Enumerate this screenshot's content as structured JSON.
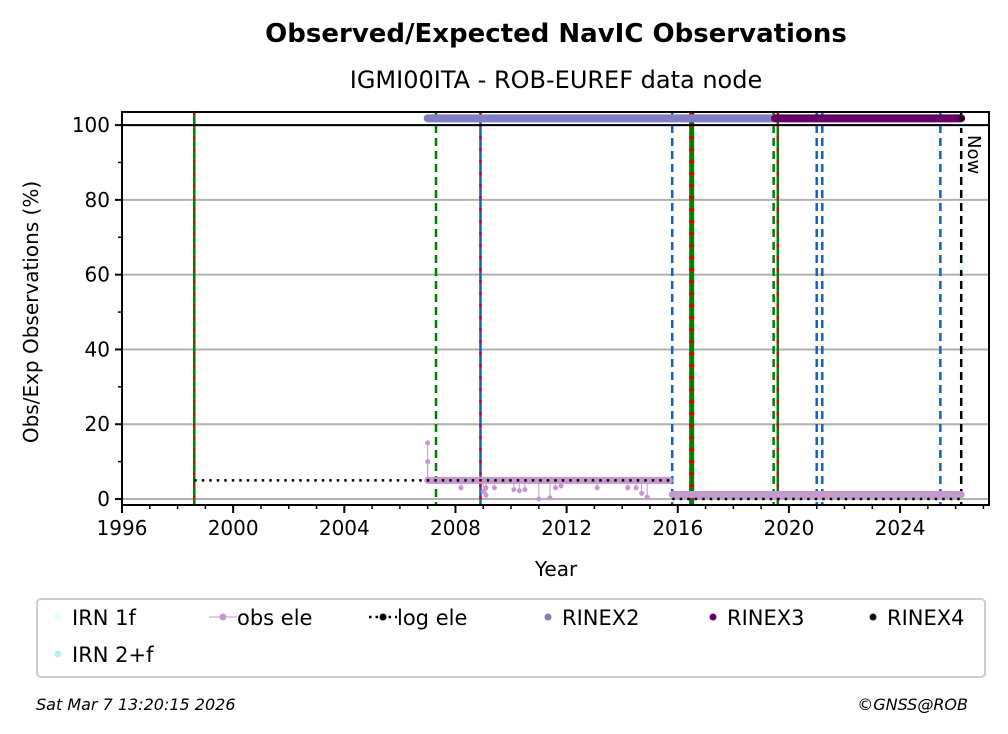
{
  "chart_data": {
    "type": "scatter",
    "title": "Observed/Expected NavIC Observations",
    "subtitle": "IGMI00ITA - ROB-EUREF data node",
    "xlabel": "Year",
    "ylabel": "Obs/Exp Observations (%)",
    "xlim": [
      1996,
      2027.2
    ],
    "ylim": [
      -1.6,
      103.5
    ],
    "xticks": [
      1996,
      2000,
      2004,
      2008,
      2012,
      2016,
      2020,
      2024
    ],
    "yticks": [
      0,
      20,
      40,
      60,
      80,
      100
    ],
    "grid": "y",
    "now_label": "Now",
    "vlines": [
      {
        "x": 1998.6,
        "colors": [
          "#008000",
          "#dd0000"
        ],
        "style": "solid"
      },
      {
        "x": 2007.3,
        "colors": [
          "#008000"
        ],
        "style": "dashed"
      },
      {
        "x": 2008.9,
        "colors": [
          "#1560bd",
          "#dd0000"
        ],
        "style": "solid"
      },
      {
        "x": 2015.8,
        "colors": [
          "#1560bd"
        ],
        "style": "dashed"
      },
      {
        "x": 2016.5,
        "colors": [
          "#008000",
          "#dd0000"
        ],
        "style": "thick"
      },
      {
        "x": 2019.45,
        "colors": [
          "#008000"
        ],
        "style": "dashed"
      },
      {
        "x": 2019.6,
        "colors": [
          "#008000",
          "#dd0000"
        ],
        "style": "solid"
      },
      {
        "x": 2021.0,
        "colors": [
          "#1560bd"
        ],
        "style": "dashed"
      },
      {
        "x": 2021.2,
        "colors": [
          "#1560bd"
        ],
        "style": "dashed"
      },
      {
        "x": 2025.45,
        "colors": [
          "#1560bd"
        ],
        "style": "dashed"
      },
      {
        "x": 2026.2,
        "colors": [
          "#000000"
        ],
        "style": "dashed"
      }
    ],
    "series": [
      {
        "name": "IRN 1f",
        "color": "#e0ffff",
        "points": [
          [
            2026.2,
            100
          ],
          [
            2026.2,
            62
          ]
        ]
      },
      {
        "name": "IRN 2+f",
        "color": "#aff3f3",
        "points": []
      },
      {
        "name": "obs ele",
        "color": "#c896d0",
        "segments": [
          [
            2007.0,
            2015.7,
            5
          ],
          [
            2015.8,
            2026.2,
            1.2
          ]
        ],
        "outliers": [
          [
            2007.0,
            15
          ],
          [
            2007.0,
            10
          ],
          [
            2008.2,
            3
          ],
          [
            2009.0,
            2
          ],
          [
            2009.1,
            1
          ],
          [
            2009.1,
            3
          ],
          [
            2009.4,
            3
          ],
          [
            2010.1,
            2.5
          ],
          [
            2010.3,
            2.2
          ],
          [
            2010.5,
            2.5
          ],
          [
            2011.0,
            0
          ],
          [
            2011.4,
            0.3
          ],
          [
            2011.6,
            3
          ],
          [
            2011.8,
            3.5
          ],
          [
            2013.1,
            3
          ],
          [
            2014.2,
            3
          ],
          [
            2014.5,
            3
          ],
          [
            2014.7,
            1.5
          ],
          [
            2014.9,
            0.5
          ]
        ]
      },
      {
        "name": "log ele",
        "color": "#000000",
        "segments": [
          [
            1998.6,
            2015.8,
            5
          ],
          [
            2015.8,
            2026.2,
            0
          ]
        ]
      },
      {
        "name": "RINEX2",
        "color": "#8080c0",
        "segments": [
          [
            2007.0,
            2019.5,
            101.8
          ]
        ]
      },
      {
        "name": "RINEX3",
        "color": "#660066",
        "segments": [
          [
            2019.5,
            2026.2,
            101.8
          ]
        ]
      },
      {
        "name": "RINEX4",
        "color": "#1a0a1a",
        "points": [
          [
            2026.2,
            101.8
          ]
        ]
      }
    ]
  },
  "footer": {
    "timestamp": "Sat Mar  7 13:20:15 2026",
    "copyright": "©GNSS@ROB"
  }
}
